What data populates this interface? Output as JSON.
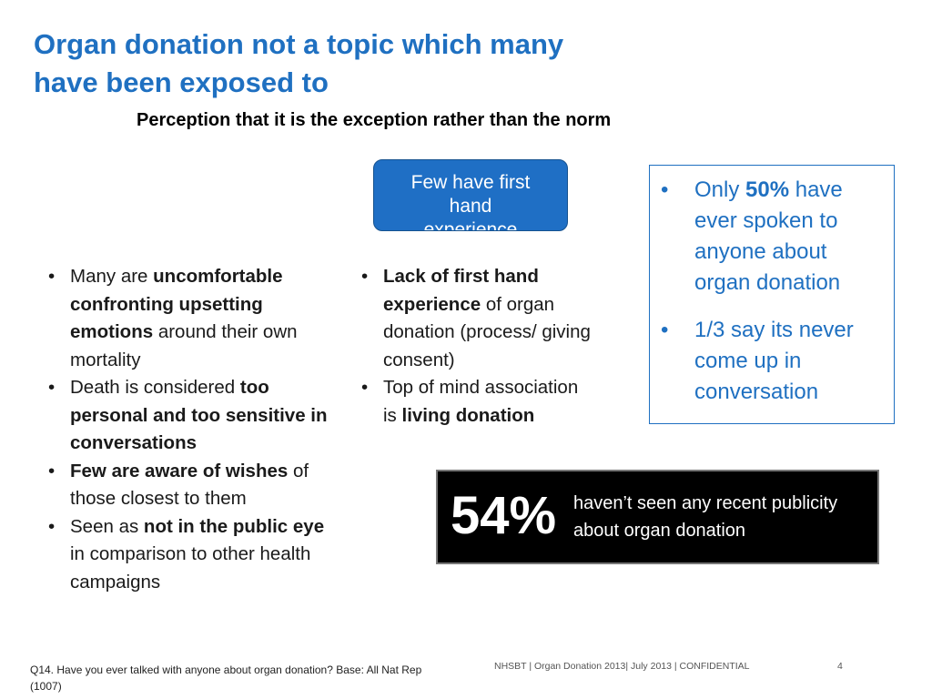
{
  "slide": {
    "title_lines": [
      "Organ donation not a topic which many",
      "have been exposed to"
    ],
    "subtitle": "Perception that it is the exception rather than the norm",
    "callout": {
      "line1": "Few have first",
      "line2": "hand",
      "line3": "experience"
    },
    "info_box": {
      "items": [
        {
          "pre": "Only ",
          "bold": "50%",
          "post": " have ever spoken to anyone about organ donation"
        },
        {
          "text": "1/3 say its never come up in conversation"
        }
      ],
      "color": "#1f70c1"
    },
    "left_column": {
      "items": [
        {
          "pre": "Many are ",
          "bold": "uncomfortable confronting upsetting emotions",
          "post": " around their own mortality"
        },
        {
          "pre": "Death is considered ",
          "bold": "too personal and too sensitive in conversations",
          "post": ""
        },
        {
          "pre": "",
          "bold": "Few are aware of wishes",
          "post": " of those closest to them"
        },
        {
          "pre": "Seen as ",
          "bold": "not in the public eye",
          "post": " in comparison to other health campaigns"
        }
      ]
    },
    "middle_column": {
      "items": [
        {
          "pre": "",
          "bold": "Lack of first hand experience",
          "post": " of organ donation (process/ giving consent)"
        },
        {
          "pre": "Top of mind association is ",
          "bold": "living donation",
          "post": ""
        }
      ]
    },
    "stat": {
      "percent": "54%",
      "text": "haven’t seen any recent publicity about organ donation"
    },
    "footnote": "Q14. Have you ever talked with anyone about organ donation? Base: All Nat Rep (1007)",
    "footer_meta": "NHSBT |  Organ Donation  2013|  July 2013 |  CONFIDENTIAL",
    "page_number": "4",
    "colors": {
      "title_blue": "#1f70c1",
      "callout_blue": "#1f6fc5",
      "stat_bg": "#000000"
    }
  }
}
